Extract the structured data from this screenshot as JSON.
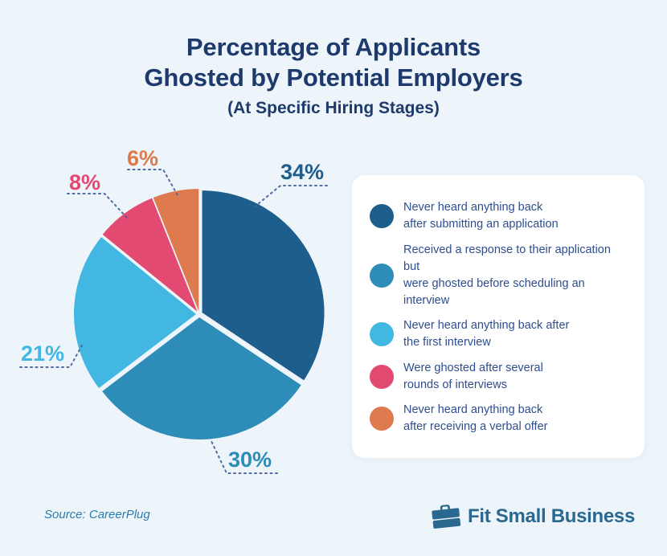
{
  "title": {
    "line1": "Percentage of Applicants",
    "line2": "Ghosted by Potential Employers",
    "subtitle": "(At Specific Hiring Stages)"
  },
  "chart_data": {
    "type": "pie",
    "title": "Percentage of Applicants Ghosted by Potential Employers (At Specific Hiring Stages)",
    "start_angle_deg": 0,
    "direction": "clockwise",
    "slices": [
      {
        "label": "34%",
        "value": 34,
        "color": "#1e5e8c",
        "name": "Never heard anything back after submitting an application"
      },
      {
        "label": "30%",
        "value": 30,
        "color": "#2e8cb8",
        "name": "Received a response to their application but were ghosted before scheduling an interview"
      },
      {
        "label": "21%",
        "value": 21,
        "color": "#41b7e2",
        "name": "Never heard anything back after the first interview"
      },
      {
        "label": "8%",
        "value": 8,
        "color": "#e24a72",
        "name": "Were ghosted after several rounds of interviews"
      },
      {
        "label": "6%",
        "value": 6,
        "color": "#dd7a4e",
        "name": "Never heard anything back after receiving a verbal offer"
      }
    ]
  },
  "legend": {
    "items": [
      {
        "text": "Never heard anything back\nafter submitting an application"
      },
      {
        "text": "Received a response to their application but\nwere ghosted before scheduling an interview"
      },
      {
        "text": "Never heard anything back after\nthe first interview"
      },
      {
        "text": "Were ghosted after several\nrounds of interviews"
      },
      {
        "text": "Never heard anything back\nafter receiving a verbal offer"
      }
    ]
  },
  "source": {
    "text": "Source:  CareerPlug"
  },
  "brand": {
    "name": "Fit Small Business",
    "icon": "briefcase-icon",
    "color": "#2b6890"
  }
}
